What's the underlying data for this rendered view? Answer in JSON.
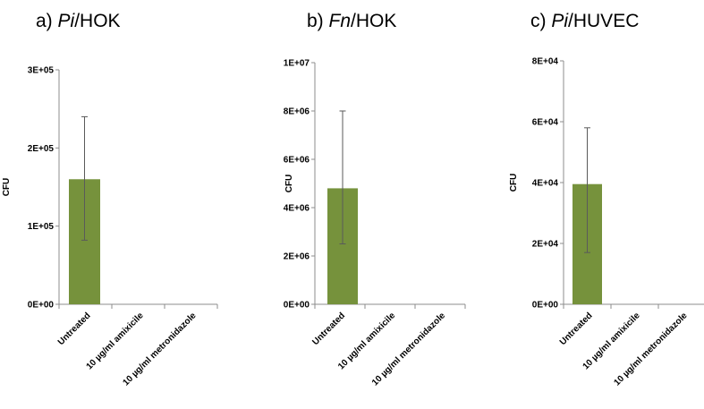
{
  "chart_data": [
    {
      "type": "bar",
      "title_prefix": "a) ",
      "title_italic": "Pi",
      "title_suffix": "/HOK",
      "ylabel": "CFU",
      "ylim": [
        0,
        300000
      ],
      "ytick_values": [
        0,
        100000,
        200000,
        300000
      ],
      "ytick_labels": [
        "0E+00",
        "1E+05",
        "2E+05",
        "3E+05"
      ],
      "categories": [
        "Untreated",
        "10 µg/ml amixicile",
        "10 µg/ml metronidazole"
      ],
      "values": [
        160000,
        0,
        0
      ],
      "error_low": [
        82000,
        0,
        0
      ],
      "error_high": [
        240000,
        0,
        0
      ],
      "bar_color": "#76923c"
    },
    {
      "type": "bar",
      "title_prefix": "b) ",
      "title_italic": "Fn",
      "title_suffix": "/HOK",
      "ylabel": "CFU",
      "ylim": [
        0,
        10000000
      ],
      "ytick_values": [
        0,
        2000000,
        4000000,
        6000000,
        8000000,
        10000000
      ],
      "ytick_labels": [
        "0E+00",
        "2E+06",
        "4E+06",
        "6E+06",
        "8E+06",
        "1E+07"
      ],
      "categories": [
        "Untreated",
        "10 µg/ml amixicile",
        "10 µg/ml metronidazole"
      ],
      "values": [
        4800000,
        0,
        0
      ],
      "error_low": [
        2500000,
        0,
        0
      ],
      "error_high": [
        8000000,
        0,
        0
      ],
      "bar_color": "#76923c"
    },
    {
      "type": "bar",
      "title_prefix": "c) ",
      "title_italic": "Pi",
      "title_suffix": "/HUVEC",
      "ylabel": "CFU",
      "ylim": [
        0,
        80000
      ],
      "ytick_values": [
        0,
        20000,
        40000,
        60000,
        80000
      ],
      "ytick_labels": [
        "0E+00",
        "2E+04",
        "4E+04",
        "6E+04",
        "8E+04"
      ],
      "categories": [
        "Untreated",
        "10 µg/ml amixicile",
        "10 µg/ml metronidazole"
      ],
      "values": [
        39500,
        0,
        0
      ],
      "error_low": [
        17000,
        0,
        0
      ],
      "error_high": [
        58000,
        0,
        0
      ],
      "bar_color": "#76923c"
    }
  ]
}
